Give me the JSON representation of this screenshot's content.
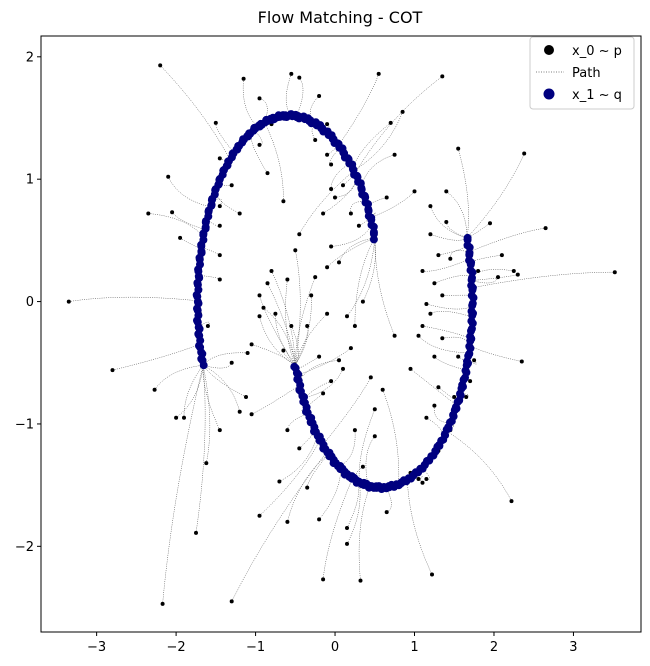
{
  "chart_data": {
    "type": "scatter",
    "title": "Flow Matching - COT",
    "xlabel": "",
    "ylabel": "",
    "xlim": [
      -3.7,
      3.85
    ],
    "ylim": [
      -2.7,
      2.17
    ],
    "x_ticks": [
      "−3",
      "−2",
      "−1",
      "0",
      "1",
      "2",
      "3"
    ],
    "x_tick_values": [
      -3,
      -2,
      -1,
      0,
      1,
      2,
      3
    ],
    "y_ticks": [
      "−2",
      "−1",
      "0",
      "1",
      "2"
    ],
    "y_tick_values": [
      -2,
      -1,
      0,
      1,
      2
    ],
    "grid": false,
    "legend_position": "top-right",
    "legend": [
      {
        "label": "x_0 ~ p",
        "marker": "dot",
        "color": "#000000"
      },
      {
        "label": "Path",
        "marker": "dotted-line",
        "color": "#555555"
      },
      {
        "label": "x_1 ~ q",
        "marker": "dot",
        "color": "#00007f"
      }
    ],
    "series": [
      {
        "name": "x_0 ~ p",
        "color": "#000000",
        "points": [
          [
            -3.35,
            0.0
          ],
          [
            -2.2,
            1.93
          ],
          [
            -2.1,
            1.02
          ],
          [
            -2.35,
            0.72
          ],
          [
            -2.05,
            0.73
          ],
          [
            -1.95,
            0.52
          ],
          [
            -1.5,
            1.46
          ],
          [
            -1.45,
            1.17
          ],
          [
            -1.3,
            0.95
          ],
          [
            -1.45,
            0.78
          ],
          [
            -1.2,
            0.72
          ],
          [
            -1.45,
            0.62
          ],
          [
            -1.45,
            0.38
          ],
          [
            -1.45,
            0.18
          ],
          [
            -1.15,
            1.82
          ],
          [
            -0.95,
            1.66
          ],
          [
            -0.8,
            1.45
          ],
          [
            -0.95,
            1.28
          ],
          [
            -0.85,
            1.05
          ],
          [
            -0.65,
            0.82
          ],
          [
            -0.55,
            1.86
          ],
          [
            -0.45,
            1.83
          ],
          [
            -0.2,
            1.68
          ],
          [
            -0.1,
            1.45
          ],
          [
            -0.25,
            1.32
          ],
          [
            -0.1,
            1.2
          ],
          [
            -0.05,
            1.12
          ],
          [
            0.1,
            0.95
          ],
          [
            -0.05,
            0.92
          ],
          [
            0.0,
            0.85
          ],
          [
            0.2,
            0.72
          ],
          [
            -0.15,
            0.72
          ],
          [
            0.3,
            0.62
          ],
          [
            0.55,
            1.86
          ],
          [
            0.7,
            1.46
          ],
          [
            0.85,
            1.55
          ],
          [
            1.35,
            1.84
          ],
          [
            1.0,
            0.9
          ],
          [
            1.2,
            0.78
          ],
          [
            1.4,
            0.9
          ],
          [
            1.4,
            0.65
          ],
          [
            1.2,
            0.55
          ],
          [
            1.45,
            0.35
          ],
          [
            1.3,
            0.38
          ],
          [
            1.1,
            0.25
          ],
          [
            1.25,
            0.15
          ],
          [
            1.35,
            0.05
          ],
          [
            1.15,
            -0.02
          ],
          [
            1.2,
            -0.1
          ],
          [
            1.1,
            -0.2
          ],
          [
            1.05,
            -0.28
          ],
          [
            1.35,
            -0.3
          ],
          [
            1.25,
            -0.45
          ],
          [
            1.55,
            -0.45
          ],
          [
            1.3,
            -0.7
          ],
          [
            2.38,
            1.21
          ],
          [
            1.95,
            0.64
          ],
          [
            2.65,
            0.6
          ],
          [
            2.1,
            0.38
          ],
          [
            2.05,
            0.2
          ],
          [
            2.25,
            0.25
          ],
          [
            2.3,
            0.22
          ],
          [
            1.8,
            0.25
          ],
          [
            3.52,
            0.24
          ],
          [
            2.35,
            -0.49
          ],
          [
            1.75,
            -0.48
          ],
          [
            1.7,
            -0.65
          ],
          [
            1.65,
            -0.78
          ],
          [
            1.5,
            -0.95
          ],
          [
            1.45,
            -1.05
          ],
          [
            1.3,
            -1.22
          ],
          [
            1.15,
            -1.45
          ],
          [
            1.1,
            -1.48
          ],
          [
            1.05,
            -1.45
          ],
          [
            0.95,
            -1.4
          ],
          [
            2.22,
            -1.63
          ],
          [
            1.22,
            -2.23
          ],
          [
            0.65,
            -1.72
          ],
          [
            0.32,
            -2.28
          ],
          [
            0.15,
            -1.98
          ],
          [
            -0.35,
            -1.52
          ],
          [
            -0.45,
            -1.2
          ],
          [
            -0.6,
            -1.05
          ],
          [
            -0.7,
            -1.47
          ],
          [
            -0.6,
            -1.8
          ],
          [
            -0.95,
            -1.75
          ],
          [
            -1.05,
            -0.92
          ],
          [
            -1.2,
            -0.9
          ],
          [
            -1.12,
            -0.78
          ],
          [
            -1.3,
            -0.5
          ],
          [
            -1.1,
            -0.42
          ],
          [
            -1.05,
            -0.35
          ],
          [
            -0.95,
            -0.12
          ],
          [
            -0.9,
            -0.05
          ],
          [
            -0.75,
            -0.1
          ],
          [
            -0.55,
            -0.2
          ],
          [
            -0.65,
            -0.4
          ],
          [
            -0.45,
            -0.6
          ],
          [
            -0.35,
            -0.85
          ],
          [
            -0.15,
            -0.75
          ],
          [
            -0.05,
            -0.65
          ],
          [
            0.1,
            -0.55
          ],
          [
            0.05,
            -0.48
          ],
          [
            0.2,
            -0.38
          ],
          [
            -0.2,
            -0.45
          ],
          [
            -0.35,
            -0.2
          ],
          [
            -0.1,
            -0.1
          ],
          [
            0.15,
            -0.12
          ],
          [
            0.25,
            -0.2
          ],
          [
            0.35,
            0.0
          ],
          [
            -0.25,
            0.2
          ],
          [
            -0.5,
            0.42
          ],
          [
            -0.45,
            0.55
          ],
          [
            -0.85,
            0.15
          ],
          [
            -0.95,
            0.05
          ],
          [
            -0.8,
            0.25
          ],
          [
            -1.7,
            -0.1
          ],
          [
            -1.6,
            -0.2
          ],
          [
            -1.9,
            -0.95
          ],
          [
            -2.0,
            -0.95
          ],
          [
            -2.27,
            -0.72
          ],
          [
            -2.8,
            -0.56
          ],
          [
            -2.17,
            -2.47
          ],
          [
            -1.75,
            -1.89
          ],
          [
            -1.3,
            -2.45
          ],
          [
            -1.62,
            -1.32
          ],
          [
            -1.45,
            -1.05
          ],
          [
            -0.2,
            -1.78
          ],
          [
            -0.15,
            -2.27
          ],
          [
            0.15,
            -1.85
          ],
          [
            0.35,
            -1.35
          ],
          [
            0.25,
            -1.05
          ],
          [
            0.5,
            -1.1
          ],
          [
            0.6,
            -0.72
          ],
          [
            0.5,
            -0.88
          ],
          [
            0.45,
            -0.62
          ],
          [
            -0.1,
            0.28
          ],
          [
            -0.05,
            0.45
          ],
          [
            0.05,
            0.32
          ],
          [
            -0.3,
            0.05
          ],
          [
            -0.6,
            0.18
          ],
          [
            0.45,
            0.7
          ],
          [
            0.65,
            0.85
          ],
          [
            1.55,
            1.25
          ],
          [
            0.75,
            1.2
          ],
          [
            1.15,
            -0.95
          ],
          [
            1.25,
            -0.85
          ],
          [
            1.5,
            -0.78
          ],
          [
            0.75,
            -0.28
          ],
          [
            0.95,
            -0.55
          ]
        ]
      },
      {
        "name": "x_1 ~ q",
        "color": "#00007f",
        "shape": {
          "type": "s-curve",
          "arcs": [
            {
              "cx": -0.58,
              "cy": 0.0,
              "rx": 1.15,
              "ry": 1.52,
              "from_deg": 20,
              "to_deg": 200
            },
            {
              "cx": 0.58,
              "cy": 0.0,
              "rx": 1.15,
              "ry": 1.52,
              "from_deg": 200,
              "to_deg": 380
            }
          ]
        }
      }
    ]
  }
}
